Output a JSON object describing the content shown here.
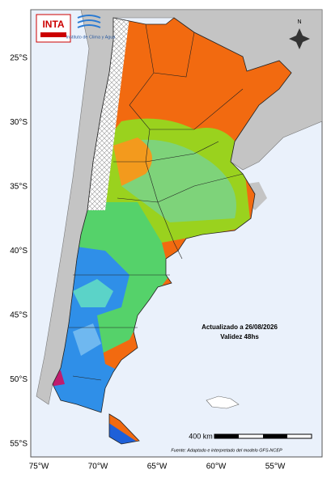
{
  "header": {
    "logo": "INTA",
    "institute": "Instituto de Clima y Agua"
  },
  "map": {
    "lat_labels": [
      "25°S",
      "30°S",
      "35°S",
      "40°S",
      "45°S",
      "50°S",
      "55°S"
    ],
    "lon_labels": [
      "75°W",
      "70°W",
      "65°W",
      "60°W",
      "55°W"
    ],
    "north": "N",
    "updated": "Actualizado a 26/08/2026",
    "validity": "Validez 48hs",
    "scale": "400 km",
    "source": "Fuente: Adaptado e interpretado del modelo GFS-NCEP"
  }
}
